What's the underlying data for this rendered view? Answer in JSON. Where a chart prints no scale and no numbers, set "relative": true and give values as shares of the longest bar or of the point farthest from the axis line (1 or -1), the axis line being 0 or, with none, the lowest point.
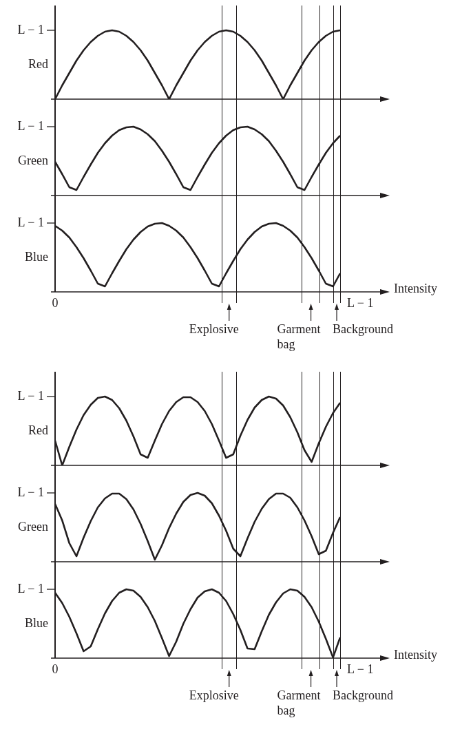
{
  "chart_data": [
    {
      "type": "line",
      "relative": true,
      "ylabel": "Red",
      "categories": [
        null,
        null,
        null,
        null,
        null,
        null,
        null,
        null,
        null,
        null,
        null,
        null,
        null,
        null,
        null,
        null,
        null,
        null,
        null,
        null,
        null,
        null,
        null,
        null,
        null,
        null,
        null,
        null,
        null,
        null,
        null,
        null,
        null,
        null,
        null,
        null,
        null,
        null,
        null,
        null,
        null
      ],
      "series": [
        {
          "color": "#231f20",
          "values": [
            0,
            0.2,
            0.38,
            0.56,
            0.71,
            0.83,
            0.92,
            0.98,
            1,
            0.98,
            0.92,
            0.83,
            0.71,
            0.56,
            0.38,
            0.2,
            0,
            0.2,
            0.38,
            0.56,
            0.71,
            0.83,
            0.92,
            0.98,
            1,
            0.98,
            0.92,
            0.83,
            0.71,
            0.56,
            0.38,
            0.2,
            0,
            0.2,
            0.38,
            0.56,
            0.71,
            0.83,
            0.92,
            0.98,
            1
          ]
        }
      ],
      "annotations": [
        "L − 1"
      ]
    },
    {
      "type": "line",
      "relative": true,
      "ylabel": "Green",
      "categories": [
        null,
        null,
        null,
        null,
        null,
        null,
        null,
        null,
        null,
        null,
        null,
        null,
        null,
        null,
        null,
        null,
        null,
        null,
        null,
        null,
        null,
        null,
        null,
        null,
        null,
        null,
        null,
        null,
        null,
        null,
        null,
        null,
        null,
        null,
        null,
        null,
        null,
        null,
        null,
        null,
        null
      ],
      "series": [
        {
          "color": "#231f20",
          "values": [
            0.49,
            0.31,
            0.12,
            0.08,
            0.27,
            0.45,
            0.62,
            0.76,
            0.87,
            0.95,
            0.99,
            1,
            0.96,
            0.89,
            0.79,
            0.65,
            0.49,
            0.31,
            0.12,
            0.08,
            0.27,
            0.45,
            0.62,
            0.76,
            0.87,
            0.95,
            0.99,
            1,
            0.96,
            0.89,
            0.79,
            0.65,
            0.49,
            0.31,
            0.12,
            0.08,
            0.27,
            0.45,
            0.62,
            0.76,
            0.87
          ]
        }
      ],
      "annotations": [
        "L − 1"
      ]
    },
    {
      "type": "line",
      "relative": true,
      "ylabel": "Blue",
      "xlabel": "Intensity",
      "categories": [
        null,
        null,
        null,
        null,
        null,
        null,
        null,
        null,
        null,
        null,
        null,
        null,
        null,
        null,
        null,
        null,
        null,
        null,
        null,
        null,
        null,
        null,
        null,
        null,
        null,
        null,
        null,
        null,
        null,
        null,
        null,
        null,
        null,
        null,
        null,
        null,
        null,
        null,
        null,
        null,
        null
      ],
      "series": [
        {
          "color": "#231f20",
          "values": [
            0.96,
            0.89,
            0.79,
            0.65,
            0.49,
            0.31,
            0.12,
            0.08,
            0.27,
            0.45,
            0.62,
            0.76,
            0.87,
            0.95,
            0.99,
            1,
            0.96,
            0.89,
            0.79,
            0.65,
            0.49,
            0.31,
            0.12,
            0.08,
            0.27,
            0.45,
            0.62,
            0.76,
            0.87,
            0.95,
            0.99,
            1,
            0.96,
            0.89,
            0.79,
            0.65,
            0.49,
            0.31,
            0.12,
            0.08,
            0.27
          ]
        }
      ],
      "annotations": [
        "L − 1",
        "0",
        "L − 1",
        "Explosive",
        "Garment bag",
        "Background"
      ]
    },
    {
      "type": "line",
      "relative": true,
      "ylabel": "Red",
      "categories": [
        null,
        null,
        null,
        null,
        null,
        null,
        null,
        null,
        null,
        null,
        null,
        null,
        null,
        null,
        null,
        null,
        null,
        null,
        null,
        null,
        null,
        null,
        null,
        null,
        null,
        null,
        null,
        null,
        null,
        null,
        null,
        null,
        null,
        null,
        null,
        null,
        null,
        null,
        null,
        null,
        null
      ],
      "series": [
        {
          "color": "#231f20",
          "values": [
            0.36,
            0,
            0.27,
            0.52,
            0.73,
            0.88,
            0.98,
            1,
            0.95,
            0.83,
            0.65,
            0.42,
            0.16,
            0.11,
            0.36,
            0.6,
            0.79,
            0.92,
            0.99,
            0.99,
            0.92,
            0.79,
            0.6,
            0.36,
            0.11,
            0.16,
            0.43,
            0.66,
            0.84,
            0.95,
            1,
            0.97,
            0.87,
            0.7,
            0.48,
            0.22,
            0.05,
            0.32,
            0.56,
            0.76,
            0.91
          ]
        }
      ],
      "annotations": [
        "L − 1"
      ]
    },
    {
      "type": "line",
      "relative": true,
      "ylabel": "Green",
      "categories": [
        null,
        null,
        null,
        null,
        null,
        null,
        null,
        null,
        null,
        null,
        null,
        null,
        null,
        null,
        null,
        null,
        null,
        null,
        null,
        null,
        null,
        null,
        null,
        null,
        null,
        null,
        null,
        null,
        null,
        null,
        null,
        null,
        null,
        null,
        null,
        null,
        null,
        null,
        null,
        null,
        null
      ],
      "series": [
        {
          "color": "#231f20",
          "values": [
            0.84,
            0.6,
            0.27,
            0.08,
            0.35,
            0.59,
            0.79,
            0.92,
            0.99,
            0.99,
            0.91,
            0.76,
            0.55,
            0.3,
            0.03,
            0.24,
            0.49,
            0.7,
            0.87,
            0.97,
            1,
            0.96,
            0.85,
            0.67,
            0.45,
            0.19,
            0.08,
            0.34,
            0.58,
            0.77,
            0.91,
            0.99,
            0.99,
            0.93,
            0.79,
            0.6,
            0.37,
            0.11,
            0.16,
            0.42,
            0.65
          ]
        }
      ],
      "annotations": [
        "L − 1"
      ]
    },
    {
      "type": "line",
      "relative": true,
      "ylabel": "Blue",
      "xlabel": "Intensity",
      "categories": [
        null,
        null,
        null,
        null,
        null,
        null,
        null,
        null,
        null,
        null,
        null,
        null,
        null,
        null,
        null,
        null,
        null,
        null,
        null,
        null,
        null,
        null,
        null,
        null,
        null,
        null,
        null,
        null,
        null,
        null,
        null,
        null,
        null,
        null,
        null,
        null,
        null,
        null,
        null,
        null,
        null
      ],
      "series": [
        {
          "color": "#231f20",
          "values": [
            0.95,
            0.8,
            0.6,
            0.36,
            0.1,
            0.17,
            0.42,
            0.65,
            0.83,
            0.95,
            1,
            0.98,
            0.89,
            0.74,
            0.54,
            0.29,
            0.03,
            0.24,
            0.5,
            0.71,
            0.88,
            0.97,
            1,
            0.95,
            0.83,
            0.64,
            0.41,
            0.14,
            0.13,
            0.39,
            0.63,
            0.81,
            0.94,
            1,
            0.98,
            0.89,
            0.74,
            0.53,
            0.28,
            0.01,
            0.3
          ]
        }
      ],
      "annotations": [
        "L − 1",
        "0",
        "L − 1",
        "Explosive",
        "Garment bag",
        "Background"
      ]
    }
  ]
}
